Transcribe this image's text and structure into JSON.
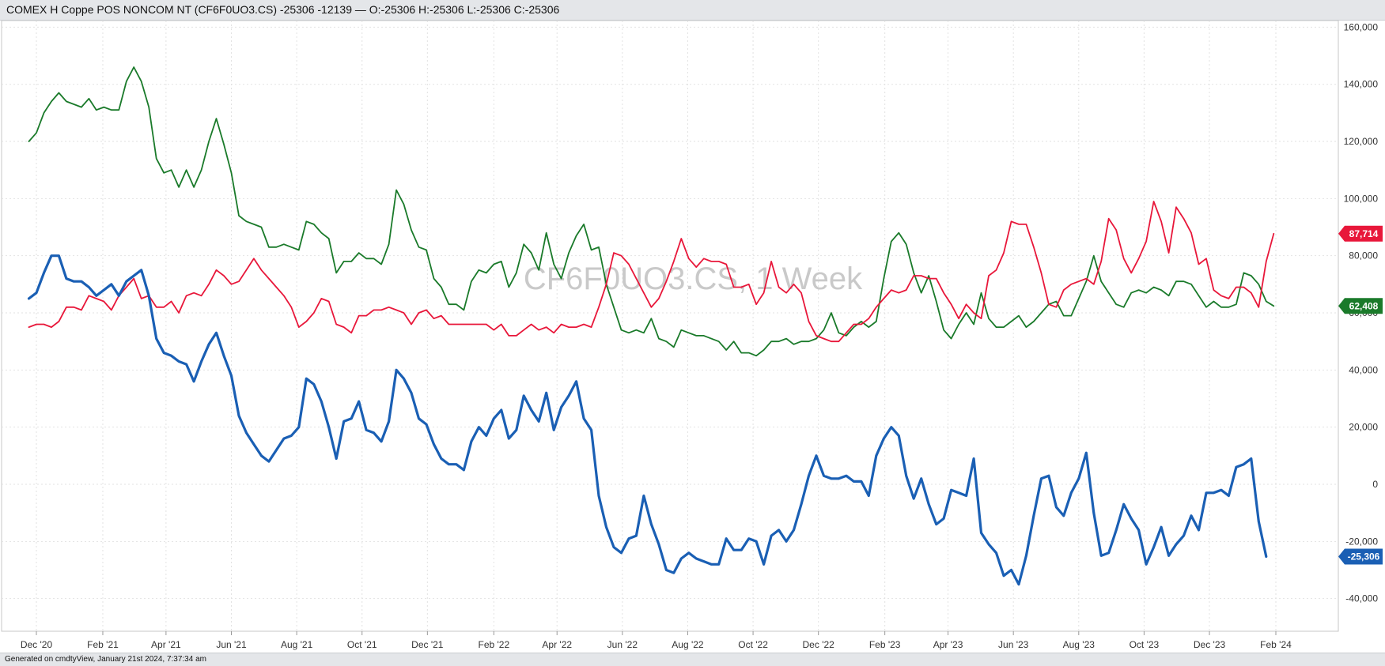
{
  "header": {
    "title": "COMEX H Coppe POS NONCOM NT (CF6F0UO3.CS) -25306 -12139 — O:-25306 H:-25306 L:-25306 C:-25306"
  },
  "watermark": "CF6F0UO3.CS, 1 Week",
  "footer": {
    "text": "Generated on cmdtyView, January 21st 2024, 7:37:34 am"
  },
  "chart_data": {
    "type": "line",
    "x_start": "2020-11-24",
    "x_step_days": 7,
    "ylim": [
      -50000,
      160000
    ],
    "y_ticks": [
      -40000,
      -20000,
      0,
      20000,
      40000,
      60000,
      80000,
      100000,
      120000,
      140000,
      160000
    ],
    "y_tick_labels": [
      "-40,000",
      "-20,000",
      "0",
      "20,000",
      "40,000",
      "60,000",
      "80,000",
      "100,000",
      "120,000",
      "140,000",
      "160,000"
    ],
    "x_tick_dates": [
      "2020-12-01",
      "2021-02-01",
      "2021-04-01",
      "2021-06-01",
      "2021-08-01",
      "2021-10-01",
      "2021-12-01",
      "2022-02-01",
      "2022-04-01",
      "2022-06-01",
      "2022-08-01",
      "2022-10-01",
      "2022-12-01",
      "2023-02-01",
      "2023-04-01",
      "2023-06-01",
      "2023-08-01",
      "2023-10-01",
      "2023-12-01",
      "2024-02-01"
    ],
    "x_tick_labels": [
      "Dec '20",
      "Feb '21",
      "Apr '21",
      "Jun '21",
      "Aug '21",
      "Oct '21",
      "Dec '21",
      "Feb '22",
      "Apr '22",
      "Jun '22",
      "Aug '22",
      "Oct '22",
      "Dec '22",
      "Feb '23",
      "Apr '23",
      "Jun '23",
      "Aug '23",
      "Oct '23",
      "Dec '23",
      "Feb '24"
    ],
    "grid": true,
    "series": [
      {
        "color": "#1a7a2a",
        "last_label": "62,408",
        "values": [
          120000,
          123000,
          130000,
          134000,
          137000,
          134000,
          133000,
          132000,
          135000,
          131000,
          132000,
          131000,
          131000,
          141000,
          146000,
          141000,
          132000,
          114000,
          109000,
          110000,
          104000,
          110000,
          104000,
          110000,
          120000,
          128000,
          119000,
          109000,
          94000,
          92000,
          91000,
          90000,
          83000,
          83000,
          84000,
          83000,
          82000,
          92000,
          91000,
          88000,
          86000,
          74000,
          78000,
          78000,
          81000,
          79000,
          79000,
          77000,
          84000,
          103000,
          98000,
          89000,
          83000,
          82000,
          72000,
          69000,
          63000,
          63000,
          61000,
          71000,
          75000,
          74000,
          77000,
          78000,
          69000,
          74000,
          84000,
          81000,
          75000,
          88000,
          77000,
          72000,
          81000,
          87000,
          91000,
          82000,
          83000,
          70000,
          62000,
          54000,
          53000,
          54000,
          53000,
          58000,
          51000,
          50000,
          48000,
          54000,
          53000,
          52000,
          52000,
          51000,
          50000,
          47000,
          50000,
          46000,
          46000,
          45000,
          47000,
          50000,
          50000,
          51000,
          49000,
          50000,
          50000,
          51000,
          54000,
          60000,
          53000,
          52000,
          55000,
          57000,
          55000,
          57000,
          72000,
          85000,
          88000,
          84000,
          74000,
          67000,
          73000,
          64000,
          54000,
          51000,
          56000,
          60000,
          56000,
          67000,
          58000,
          55000,
          55000,
          57000,
          59000,
          55000,
          57000,
          60000,
          63000,
          64000,
          59000,
          59000,
          65000,
          71000,
          80000,
          71000,
          67000,
          63000,
          62000,
          67000,
          68000,
          67000,
          69000,
          68000,
          66000,
          71000,
          71000,
          70000,
          66000,
          62000,
          64000,
          62000,
          62000,
          63000,
          74000,
          73000,
          70000,
          64000,
          62408
        ]
      },
      {
        "color": "#e8173a",
        "last_label": "87,714",
        "values": [
          55000,
          56000,
          56000,
          55000,
          57000,
          62000,
          62000,
          61000,
          66000,
          65000,
          64000,
          61000,
          66000,
          69000,
          72000,
          65000,
          66000,
          62000,
          62000,
          64000,
          60000,
          66000,
          67000,
          66000,
          70000,
          75000,
          73000,
          70000,
          71000,
          75000,
          79000,
          75000,
          72000,
          69000,
          66000,
          62000,
          55000,
          57000,
          60000,
          65000,
          64000,
          56000,
          55000,
          53000,
          59000,
          59000,
          61000,
          61000,
          62000,
          61000,
          60000,
          56000,
          60000,
          61000,
          58000,
          59000,
          56000,
          56000,
          56000,
          56000,
          56000,
          56000,
          54000,
          56000,
          52000,
          52000,
          54000,
          56000,
          54000,
          55000,
          53000,
          56000,
          55000,
          55000,
          56000,
          55000,
          62000,
          70000,
          81000,
          80000,
          77000,
          72000,
          67000,
          62000,
          65000,
          71000,
          78000,
          86000,
          79000,
          76000,
          79000,
          78000,
          78000,
          77000,
          69000,
          69000,
          70000,
          63000,
          67000,
          78000,
          69000,
          67000,
          70000,
          67000,
          57000,
          52000,
          51000,
          50000,
          50000,
          53000,
          56000,
          56000,
          58000,
          62000,
          65000,
          68000,
          67000,
          68000,
          73000,
          73000,
          72000,
          72000,
          67000,
          63000,
          58000,
          63000,
          60000,
          58000,
          73000,
          75000,
          81000,
          92000,
          91000,
          91000,
          83000,
          74000,
          63000,
          62000,
          68000,
          70000,
          71000,
          72000,
          70000,
          78000,
          93000,
          89000,
          79000,
          74000,
          79000,
          85000,
          99000,
          92000,
          81000,
          97000,
          93000,
          88000,
          77000,
          79000,
          68000,
          66000,
          65000,
          69000,
          69000,
          67000,
          62000,
          78000,
          87714
        ]
      },
      {
        "color": "#1a5fb4",
        "last_label": "-25,306",
        "values": [
          65000,
          67000,
          74000,
          80000,
          80000,
          72000,
          71000,
          71000,
          69000,
          66000,
          68000,
          70000,
          66000,
          71000,
          73000,
          75000,
          66000,
          51000,
          46000,
          45000,
          43000,
          42000,
          36000,
          43000,
          49000,
          53000,
          45000,
          38000,
          24000,
          18000,
          14000,
          10000,
          8000,
          12000,
          16000,
          17000,
          20000,
          37000,
          35000,
          29000,
          20000,
          9000,
          22000,
          23000,
          29000,
          19000,
          18000,
          15000,
          22000,
          40000,
          37000,
          32000,
          23000,
          21000,
          14000,
          9000,
          7000,
          7000,
          5000,
          15000,
          20000,
          17000,
          23000,
          26000,
          16000,
          19000,
          31000,
          26000,
          22000,
          32000,
          19000,
          27000,
          31000,
          36000,
          23000,
          19000,
          -4000,
          -15000,
          -22000,
          -24000,
          -19000,
          -18000,
          -4000,
          -14000,
          -21000,
          -30000,
          -31000,
          -26000,
          -24000,
          -26000,
          -27000,
          -28000,
          -28000,
          -19000,
          -23000,
          -23000,
          -19000,
          -20000,
          -28000,
          -18000,
          -16000,
          -20000,
          -16000,
          -7000,
          3000,
          10000,
          3000,
          2000,
          2000,
          3000,
          1000,
          1000,
          -4000,
          10000,
          16000,
          20000,
          17000,
          3000,
          -5000,
          2000,
          -7000,
          -14000,
          -12000,
          -2000,
          -3000,
          -4000,
          9000,
          -17000,
          -21000,
          -24000,
          -32000,
          -30000,
          -35000,
          -25000,
          -11000,
          2000,
          3000,
          -8000,
          -11000,
          -3000,
          2000,
          11000,
          -10000,
          -25000,
          -24000,
          -16000,
          -7000,
          -12000,
          -16000,
          -28000,
          -22000,
          -15000,
          -25000,
          -21000,
          -18000,
          -11000,
          -16000,
          -3000,
          -3000,
          -2000,
          -4000,
          6000,
          7000,
          9000,
          -13000,
          -25306
        ]
      }
    ]
  }
}
